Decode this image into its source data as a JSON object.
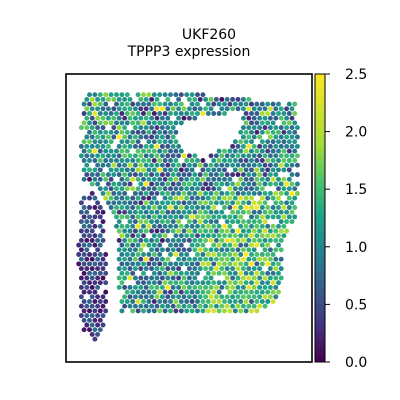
{
  "chart_data": {
    "type": "heatmap",
    "title": "UKF260",
    "subtitle": "TPPP3 expression",
    "xlabel": "",
    "ylabel": "",
    "colorbar": {
      "colormap": "viridis",
      "range": [
        0.0,
        2.5
      ],
      "ticks": [
        0.0,
        0.5,
        1.0,
        1.5,
        2.0,
        2.5
      ],
      "tick_labels": [
        "0.0",
        "0.5",
        "1.0",
        "1.5",
        "2.0",
        "2.5"
      ]
    },
    "grid": false,
    "legend": "none"
  },
  "colors": {
    "viridis_low": "#440154",
    "viridis_mid": "#21918c",
    "viridis_high": "#fde725"
  }
}
